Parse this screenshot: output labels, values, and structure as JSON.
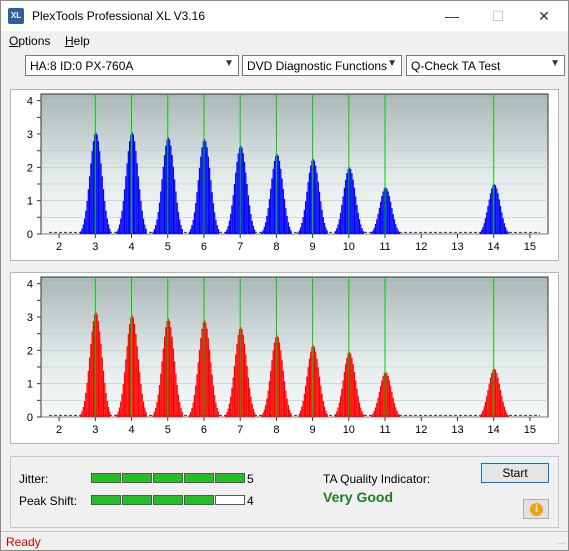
{
  "window": {
    "title": "PlexTools Professional XL V3.16",
    "icon_text": "XL"
  },
  "window_controls": {
    "minimize": "—",
    "maximize": "☐",
    "close": "✕"
  },
  "menu": [
    {
      "label": "Options",
      "accel": "O",
      "rest": "ptions"
    },
    {
      "label": "Help",
      "accel": "H",
      "rest": "elp"
    }
  ],
  "toolbar": {
    "drive": "HA:8 ID:0  PX-760A",
    "function": "DVD Diagnostic Functions",
    "test": "Q-Check TA Test"
  },
  "charts": {
    "top_color": "#0000ff",
    "bottom_color": "#ff0000",
    "marker_color": "#00cc00",
    "x_ticks": [
      2,
      3,
      4,
      5,
      6,
      7,
      8,
      9,
      10,
      11,
      12,
      13,
      14,
      15
    ],
    "y_ticks": [
      0,
      0.5,
      1,
      1.5,
      2,
      2.5,
      3,
      3.5,
      4
    ],
    "y_tick_labels": [
      "0",
      "",
      "1",
      "",
      "2",
      "",
      "3",
      "",
      "4"
    ],
    "markers": [
      3,
      4,
      5,
      6,
      7,
      8,
      9,
      10,
      11,
      14
    ]
  },
  "chart_data": [
    {
      "type": "area",
      "xlim": [
        1.5,
        15.5
      ],
      "ylim": [
        0,
        4.2
      ],
      "peaks": [
        {
          "center": 3.0,
          "value": 3.1
        },
        {
          "center": 4.0,
          "value": 3.1
        },
        {
          "center": 5.0,
          "value": 2.95
        },
        {
          "center": 6.0,
          "value": 2.9
        },
        {
          "center": 7.0,
          "value": 2.7
        },
        {
          "center": 8.0,
          "value": 2.45
        },
        {
          "center": 9.0,
          "value": 2.3
        },
        {
          "center": 10.0,
          "value": 2.05
        },
        {
          "center": 11.0,
          "value": 1.45
        },
        {
          "center": 14.0,
          "value": 1.55
        }
      ]
    },
    {
      "type": "area",
      "xlim": [
        1.5,
        15.5
      ],
      "ylim": [
        0,
        4.2
      ],
      "peaks": [
        {
          "center": 3.0,
          "value": 3.2
        },
        {
          "center": 4.0,
          "value": 3.1
        },
        {
          "center": 5.0,
          "value": 3.0
        },
        {
          "center": 6.0,
          "value": 2.95
        },
        {
          "center": 7.0,
          "value": 2.75
        },
        {
          "center": 8.0,
          "value": 2.5
        },
        {
          "center": 9.0,
          "value": 2.2
        },
        {
          "center": 10.0,
          "value": 2.0
        },
        {
          "center": 11.0,
          "value": 1.4
        },
        {
          "center": 14.0,
          "value": 1.5
        }
      ]
    }
  ],
  "results": {
    "jitter_label": "Jitter:",
    "jitter_value": "5",
    "jitter_level": 5,
    "peak_label": "Peak Shift:",
    "peak_value": "4",
    "peak_level": 4,
    "ta_label": "TA Quality Indicator:",
    "ta_rating": "Very Good",
    "start_label": "Start",
    "info_symbol": "i"
  },
  "status": {
    "text": "Ready"
  }
}
